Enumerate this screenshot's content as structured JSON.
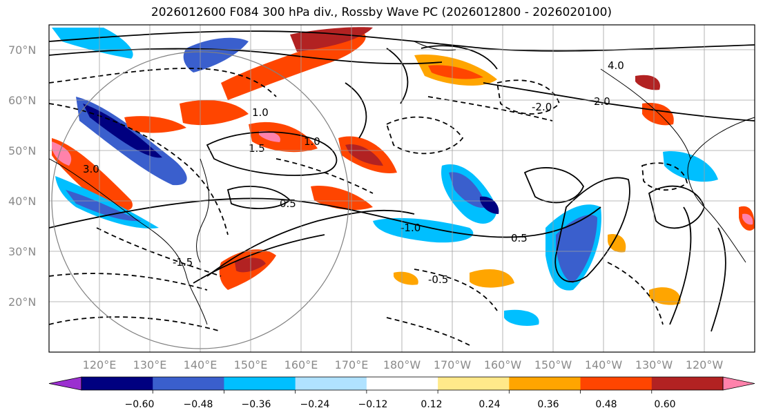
{
  "title": "2026012600 F084 300 hPa div., Rossby Wave PC (2026012800 - 2026020100)",
  "map": {
    "lat_labels": [
      "20°N",
      "30°N",
      "40°N",
      "50°N",
      "60°N",
      "70°N"
    ],
    "lon_labels": [
      "120°E",
      "130°E",
      "140°E",
      "150°E",
      "160°E",
      "170°E",
      "180°W",
      "170°W",
      "160°W",
      "150°W",
      "140°W",
      "130°W",
      "120°W"
    ],
    "contour_labels": [
      "-0.5",
      "1.0",
      "1.5",
      "2.0",
      "-1.0",
      "0.5",
      "4.0",
      "-2.0",
      "-1.5",
      "3.0"
    ]
  },
  "colorbar": {
    "colors": [
      "#9b30d0",
      "#000080",
      "#3a5fcd",
      "#00bfff",
      "#b0e2ff",
      "#ffffff",
      "#ffe98a",
      "#ffa500",
      "#ff4500",
      "#b22222",
      "#ff82ab"
    ],
    "tick_labels": [
      "−0.60",
      "−0.48",
      "−0.36",
      "−0.24",
      "−0.12",
      "0.12",
      "0.24",
      "0.36",
      "0.48",
      "0.60"
    ]
  }
}
